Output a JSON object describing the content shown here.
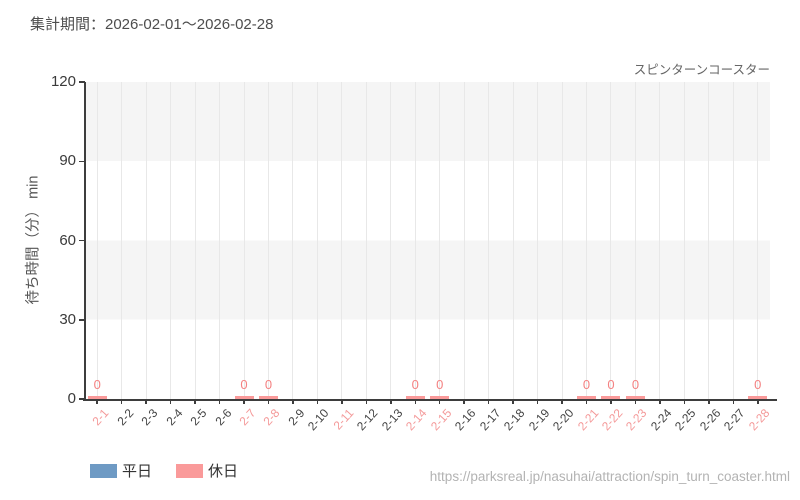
{
  "header": {
    "title": "集計期間：2026-02-01〜2026-02-28"
  },
  "chart_header": {
    "attraction": "スピンターンコースター"
  },
  "legend": {
    "items": [
      {
        "key": "weekday",
        "label": "平日",
        "color": "#6e9ac4"
      },
      {
        "key": "holiday",
        "label": "休日",
        "color": "#fa9a9a"
      }
    ]
  },
  "footer": {
    "url": "https://parksreal.jp/nasuhai/attraction/spin_turn_coaster.html"
  },
  "chart_data": {
    "type": "bar",
    "title": "スピンターンコースター",
    "xlabel": "",
    "ylabel": "待ち時間（分） min",
    "ylim": [
      0,
      120
    ],
    "yticks": [
      0,
      30,
      60,
      90,
      120
    ],
    "grid": "vertical-per-category",
    "band_colors": [
      "#f5f5f5",
      "#ffffff"
    ],
    "legend_position": "bottom-left",
    "categories": [
      "2-1",
      "2-2",
      "2-3",
      "2-4",
      "2-5",
      "2-6",
      "2-7",
      "2-8",
      "2-9",
      "2-10",
      "2-11",
      "2-12",
      "2-13",
      "2-14",
      "2-15",
      "2-16",
      "2-17",
      "2-18",
      "2-19",
      "2-20",
      "2-21",
      "2-22",
      "2-23",
      "2-24",
      "2-25",
      "2-26",
      "2-27",
      "2-28"
    ],
    "day_types": [
      "holiday",
      "weekday",
      "weekday",
      "weekday",
      "weekday",
      "weekday",
      "holiday",
      "holiday",
      "weekday",
      "weekday",
      "holiday",
      "weekday",
      "weekday",
      "holiday",
      "holiday",
      "weekday",
      "weekday",
      "weekday",
      "weekday",
      "weekday",
      "holiday",
      "holiday",
      "holiday",
      "weekday",
      "weekday",
      "weekday",
      "weekday",
      "holiday"
    ],
    "axis_label_colors": {
      "weekday": "#444444",
      "holiday": "#f49a9a"
    },
    "value_labels_shown": true,
    "series": [
      {
        "key": "weekday",
        "name": "平日",
        "color": "#6e9ac4",
        "value_label_color": "#5d8ab8",
        "values": [
          null,
          null,
          null,
          null,
          null,
          null,
          null,
          null,
          null,
          null,
          null,
          null,
          null,
          null,
          null,
          null,
          null,
          null,
          null,
          null,
          null,
          null,
          null,
          null,
          null,
          null,
          null,
          null
        ]
      },
      {
        "key": "holiday",
        "name": "休日",
        "color": "#fa9a9a",
        "value_label_color": "#f48282",
        "values": [
          0,
          null,
          null,
          null,
          null,
          null,
          0,
          0,
          null,
          null,
          null,
          null,
          null,
          0,
          0,
          null,
          null,
          null,
          null,
          null,
          0,
          0,
          0,
          null,
          null,
          null,
          null,
          0
        ]
      }
    ]
  }
}
